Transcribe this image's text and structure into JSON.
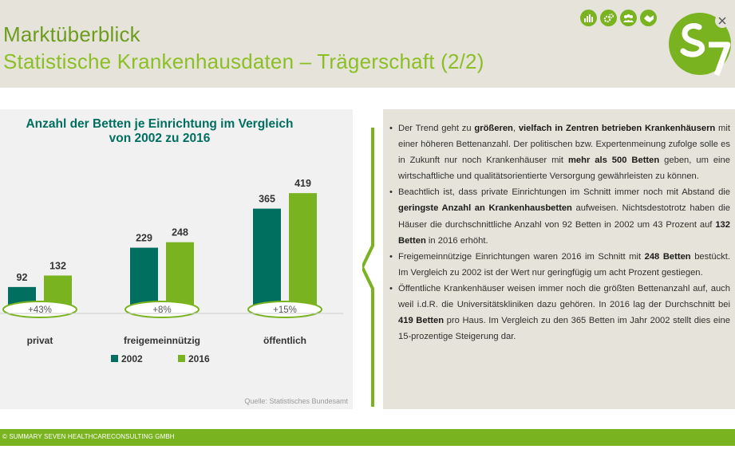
{
  "header": {
    "title": "Marktüberblick",
    "subtitle": "Statistische Krankenhausdaten – Trägerschaft (2/2)",
    "icons": [
      "bar-chart-icon",
      "gears-icon",
      "people-icon",
      "handshake-icon"
    ],
    "logo": {
      "letters": "S7"
    }
  },
  "colors": {
    "dark_green": "#006f5f",
    "light_green": "#7ab320",
    "header_bg": "#e5e3da"
  },
  "chart_data": {
    "type": "bar",
    "title_line1": "Anzahl der Betten je Einrichtung im Vergleich",
    "title_line2": "von 2002 zu 2016",
    "categories": [
      "privat",
      "freigemeinnützig",
      "öffentlich"
    ],
    "series": [
      {
        "name": "2002",
        "values": [
          92,
          229,
          365
        ],
        "color": "#006f5f"
      },
      {
        "name": "2016",
        "values": [
          132,
          248,
          419
        ],
        "color": "#7ab320"
      }
    ],
    "change_labels": [
      "+43%",
      "+8%",
      "+15%"
    ],
    "ylim": [
      0,
      450
    ],
    "source": "Quelle: Statistisches Bundesamt"
  },
  "bullets": [
    [
      {
        "t": "Der Trend geht zu "
      },
      {
        "t": "größeren",
        "b": true
      },
      {
        "t": ", "
      },
      {
        "t": "vielfach in Zentren betrieben Krankenhäusern",
        "b": true
      },
      {
        "t": " mit einer höheren Bettenanzahl. Der politischen bzw. Expertenmeinung zufolge solle es in Zukunft nur noch Krankenhäuser mit "
      },
      {
        "t": "mehr als 500 Betten",
        "b": true
      },
      {
        "t": " geben, um eine wirtschaftliche und qualitätsorientierte Versorgung gewährleisten zu können."
      }
    ],
    [
      {
        "t": "Beachtlich ist, dass private Einrichtungen im Schnitt immer noch mit Abstand die "
      },
      {
        "t": "geringste Anzahl an Krankenhausbetten",
        "b": true
      },
      {
        "t": " aufweisen. Nichtsdestotrotz haben die Häuser die durchschnittliche Anzahl von 92 Betten in 2002 um 43 Prozent auf "
      },
      {
        "t": "132 Betten",
        "b": true
      },
      {
        "t": " in 2016 erhöht."
      }
    ],
    [
      {
        "t": "Freigemeinnützige Einrichtungen waren 2016 im Schnitt mit "
      },
      {
        "t": "248 Betten",
        "b": true
      },
      {
        "t": " bestückt. Im Vergleich zu 2002 ist der Wert nur geringfügig um acht Prozent gestiegen."
      }
    ],
    [
      {
        "t": "Öffentliche Krankenhäuser weisen immer noch die größten Bettenanzahl auf, auch weil i.d.R. die Universitätskliniken dazu gehören. In 2016 lag der Durchschnitt bei "
      },
      {
        "t": "419 Betten",
        "b": true
      },
      {
        "t": " pro Haus. Im Vergleich zu den 365 Betten im Jahr 2002 stellt dies eine 15-prozentige Steigerung dar."
      }
    ]
  ],
  "footer": {
    "copyright": "© SUMMARY SEVEN HEALTHCARECONSULTING GMBH"
  }
}
